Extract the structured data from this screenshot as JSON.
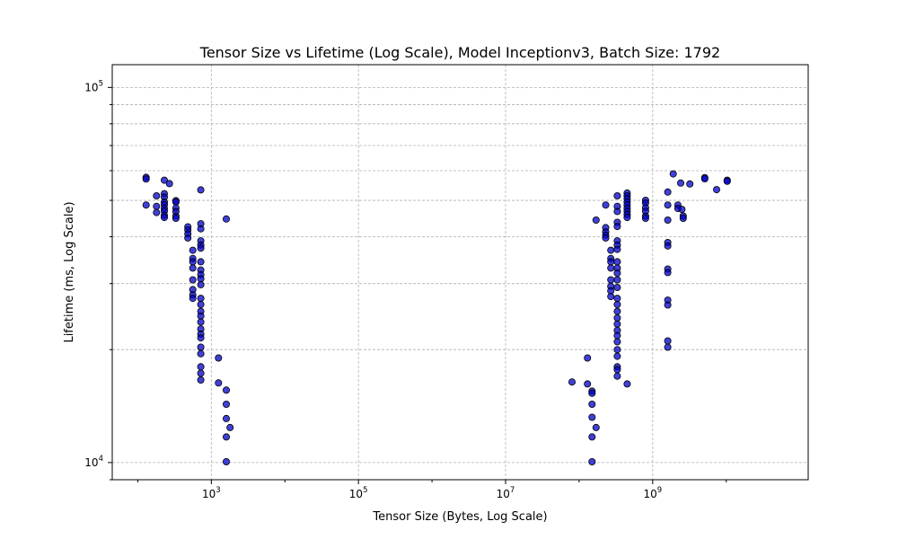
{
  "chart_data": {
    "type": "scatter",
    "title": "Tensor Size vs Lifetime (Log Scale), Model Inceptionv3, Batch Size: 1792",
    "xlabel": "Tensor Size (Bytes, Log Scale)",
    "ylabel": "Lifetime (ms, Log Scale)",
    "xscale": "log",
    "yscale": "log",
    "xlim": [
      45,
      130000000000
    ],
    "ylim": [
      9000,
      115000
    ],
    "grid": true,
    "x_ticks": [
      {
        "value": 1000,
        "base": "10",
        "exp": "3"
      },
      {
        "value": 100000,
        "base": "10",
        "exp": "5"
      },
      {
        "value": 10000000,
        "base": "10",
        "exp": "7"
      },
      {
        "value": 1000000000,
        "base": "10",
        "exp": "9"
      }
    ],
    "y_ticks": [
      {
        "value": 10000,
        "base": "10",
        "exp": "4"
      },
      {
        "value": 100000,
        "base": "10",
        "exp": "5"
      }
    ],
    "marker_color": "#0000cc",
    "points": [
      [
        130,
        57600
      ],
      [
        130,
        57000
      ],
      [
        130,
        48600
      ],
      [
        180,
        51400
      ],
      [
        180,
        48200
      ],
      [
        180,
        46400
      ],
      [
        230,
        56600
      ],
      [
        230,
        52100
      ],
      [
        230,
        51000
      ],
      [
        230,
        49500
      ],
      [
        230,
        48700
      ],
      [
        230,
        47600
      ],
      [
        230,
        46800
      ],
      [
        230,
        45600
      ],
      [
        230,
        45000
      ],
      [
        270,
        55400
      ],
      [
        330,
        49900
      ],
      [
        330,
        49500
      ],
      [
        330,
        47700
      ],
      [
        330,
        46700
      ],
      [
        330,
        45400
      ],
      [
        330,
        44800
      ],
      [
        480,
        42500
      ],
      [
        480,
        41700
      ],
      [
        480,
        40700
      ],
      [
        480,
        39700
      ],
      [
        560,
        36800
      ],
      [
        560,
        35000
      ],
      [
        560,
        34300
      ],
      [
        560,
        33000
      ],
      [
        560,
        30700
      ],
      [
        560,
        28900
      ],
      [
        560,
        28000
      ],
      [
        560,
        27400
      ],
      [
        720,
        53300
      ],
      [
        720,
        43300
      ],
      [
        720,
        42000
      ],
      [
        720,
        39000
      ],
      [
        720,
        38000
      ],
      [
        720,
        37300
      ],
      [
        720,
        34300
      ],
      [
        720,
        32600
      ],
      [
        720,
        31700
      ],
      [
        720,
        30900
      ],
      [
        720,
        29800
      ],
      [
        720,
        27400
      ],
      [
        720,
        26400
      ],
      [
        720,
        25300
      ],
      [
        720,
        24600
      ],
      [
        720,
        23700
      ],
      [
        720,
        22700
      ],
      [
        720,
        22000
      ],
      [
        720,
        21500
      ],
      [
        720,
        20300
      ],
      [
        720,
        19500
      ],
      [
        720,
        18000
      ],
      [
        720,
        17300
      ],
      [
        720,
        16600
      ],
      [
        1250,
        19000
      ],
      [
        1250,
        16300
      ],
      [
        1600,
        44600
      ],
      [
        1600,
        15600
      ],
      [
        1600,
        14300
      ],
      [
        1600,
        13100
      ],
      [
        1600,
        11700
      ],
      [
        1600,
        10050
      ],
      [
        1800,
        12400
      ],
      [
        80000000,
        16400
      ],
      [
        130000000,
        19000
      ],
      [
        130000000,
        16200
      ],
      [
        150000000,
        15500
      ],
      [
        150000000,
        15300
      ],
      [
        150000000,
        14300
      ],
      [
        150000000,
        13200
      ],
      [
        150000000,
        11700
      ],
      [
        150000000,
        10050
      ],
      [
        170000000,
        44300
      ],
      [
        170000000,
        12400
      ],
      [
        230000000,
        48600
      ],
      [
        230000000,
        42300
      ],
      [
        230000000,
        41200
      ],
      [
        230000000,
        40400
      ],
      [
        230000000,
        39700
      ],
      [
        270000000,
        36800
      ],
      [
        270000000,
        35000
      ],
      [
        270000000,
        34300
      ],
      [
        270000000,
        33000
      ],
      [
        270000000,
        30700
      ],
      [
        270000000,
        29500
      ],
      [
        270000000,
        28700
      ],
      [
        270000000,
        27700
      ],
      [
        330000000,
        51400
      ],
      [
        330000000,
        48200
      ],
      [
        330000000,
        46700
      ],
      [
        330000000,
        43700
      ],
      [
        330000000,
        42600
      ],
      [
        330000000,
        39000
      ],
      [
        330000000,
        38000
      ],
      [
        330000000,
        37000
      ],
      [
        330000000,
        34300
      ],
      [
        330000000,
        33000
      ],
      [
        330000000,
        32000
      ],
      [
        330000000,
        30700
      ],
      [
        330000000,
        29300
      ],
      [
        330000000,
        27400
      ],
      [
        330000000,
        26400
      ],
      [
        330000000,
        25300
      ],
      [
        330000000,
        24300
      ],
      [
        330000000,
        23400
      ],
      [
        330000000,
        22500
      ],
      [
        330000000,
        21800
      ],
      [
        330000000,
        21000
      ],
      [
        330000000,
        20000
      ],
      [
        330000000,
        19200
      ],
      [
        330000000,
        18000
      ],
      [
        330000000,
        17700
      ],
      [
        330000000,
        17000
      ],
      [
        450000000,
        52300
      ],
      [
        450000000,
        51400
      ],
      [
        450000000,
        50500
      ],
      [
        450000000,
        49500
      ],
      [
        450000000,
        48600
      ],
      [
        450000000,
        47600
      ],
      [
        450000000,
        46700
      ],
      [
        450000000,
        45800
      ],
      [
        450000000,
        45000
      ],
      [
        450000000,
        16200
      ],
      [
        800000000,
        50000
      ],
      [
        800000000,
        49200
      ],
      [
        800000000,
        47800
      ],
      [
        800000000,
        46800
      ],
      [
        800000000,
        45400
      ],
      [
        800000000,
        44800
      ],
      [
        1600000000,
        52600
      ],
      [
        1600000000,
        48600
      ],
      [
        1600000000,
        44300
      ],
      [
        1600000000,
        38600
      ],
      [
        1600000000,
        37800
      ],
      [
        1600000000,
        32800
      ],
      [
        1600000000,
        32100
      ],
      [
        1600000000,
        27100
      ],
      [
        1600000000,
        26300
      ],
      [
        1600000000,
        21100
      ],
      [
        1600000000,
        20300
      ],
      [
        1900000000,
        58800
      ],
      [
        2200000000,
        48600
      ],
      [
        2200000000,
        47600
      ],
      [
        2400000000,
        55600
      ],
      [
        2500000000,
        47300
      ],
      [
        2600000000,
        45400
      ],
      [
        2600000000,
        44800
      ],
      [
        3200000000,
        55300
      ],
      [
        5100000000,
        57500
      ],
      [
        5100000000,
        57100
      ],
      [
        7400000000,
        53400
      ],
      [
        10300000000,
        56600
      ],
      [
        10300000000,
        56200
      ]
    ]
  }
}
